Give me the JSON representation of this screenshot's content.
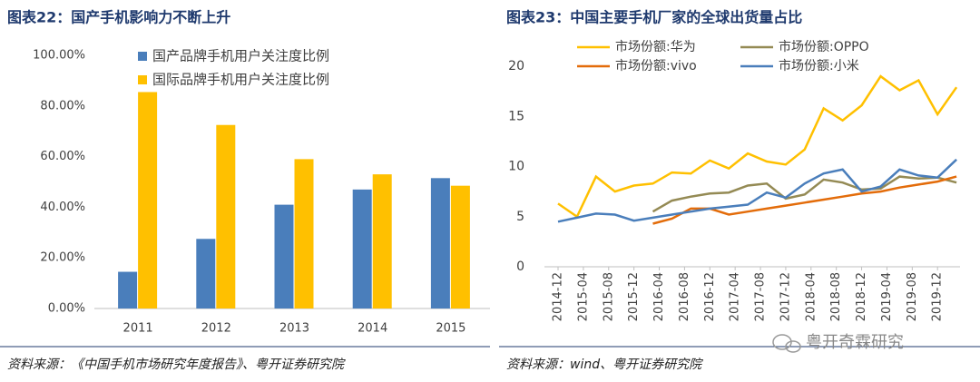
{
  "chart_data": [
    {
      "type": "bar",
      "title": "图表22：国产手机影响力不断上升",
      "categories": [
        "2011",
        "2012",
        "2013",
        "2014",
        "2015"
      ],
      "series": [
        {
          "name": "国产品牌手机用户关注度比例",
          "color": "#4a7ebb",
          "values": [
            14.5,
            27.5,
            41,
            47,
            51.5
          ]
        },
        {
          "name": "国际品牌手机用户关注度比例",
          "color": "#ffc000",
          "values": [
            85.5,
            72.5,
            59,
            53,
            48.5
          ]
        }
      ],
      "ylim": [
        0,
        100
      ],
      "yticks": [
        {
          "value": 0,
          "label": "0.00%"
        },
        {
          "value": 20,
          "label": "20.00%"
        },
        {
          "value": 40,
          "label": "40.00%"
        },
        {
          "value": 60,
          "label": "60.00%"
        },
        {
          "value": 80,
          "label": "80.00%"
        },
        {
          "value": 100,
          "label": "100.00%"
        }
      ],
      "grid": false,
      "source": "资料来源：《中国手机市场研究年度报告》、粤开证券研究院"
    },
    {
      "type": "line",
      "title": "图表23：中国主要手机厂家的全球出货量占比",
      "x": [
        "2014-12",
        "2015-03",
        "2015-06",
        "2015-09",
        "2015-12",
        "2016-03",
        "2016-06",
        "2016-09",
        "2016-12",
        "2017-03",
        "2017-06",
        "2017-09",
        "2017-12",
        "2018-03",
        "2018-06",
        "2018-09",
        "2018-12",
        "2019-03",
        "2019-06",
        "2019-09",
        "2019-12",
        "2020-03"
      ],
      "xticks": [
        "2014-12",
        "2015-04",
        "2015-08",
        "2015-12",
        "2016-04",
        "2016-08",
        "2016-12",
        "2017-04",
        "2017-08",
        "2017-12",
        "2018-04",
        "2018-08",
        "2018-12",
        "2019-04",
        "2019-08",
        "2019-12"
      ],
      "series": [
        {
          "name": "市场份额:华为",
          "color": "#ffc000",
          "values": [
            6.3,
            5.0,
            9.0,
            7.5,
            8.1,
            8.3,
            9.4,
            9.3,
            10.6,
            9.8,
            11.3,
            10.5,
            10.2,
            11.7,
            15.8,
            14.6,
            16.1,
            19.0,
            17.6,
            18.6,
            15.2,
            17.9
          ]
        },
        {
          "name": "市场份额:OPPO",
          "color": "#948a54",
          "values": [
            null,
            null,
            null,
            null,
            null,
            5.5,
            6.6,
            7.0,
            7.3,
            7.4,
            8.1,
            8.3,
            6.8,
            7.2,
            8.7,
            8.4,
            7.7,
            7.8,
            9.0,
            8.8,
            8.9,
            8.4
          ]
        },
        {
          "name": "市场份额:vivo",
          "color": "#e36c0a",
          "values": [
            null,
            null,
            null,
            null,
            null,
            4.3,
            4.8,
            5.8,
            5.8,
            5.2,
            5.5,
            5.8,
            6.1,
            6.4,
            6.7,
            7.0,
            7.3,
            7.5,
            7.9,
            8.2,
            8.5,
            9.0
          ]
        },
        {
          "name": "市场份额:小米",
          "color": "#4a7ebb",
          "values": [
            4.5,
            4.9,
            5.3,
            5.2,
            4.6,
            4.9,
            5.2,
            5.5,
            5.8,
            6.0,
            6.2,
            7.4,
            6.9,
            8.3,
            9.3,
            9.7,
            7.5,
            8.0,
            9.7,
            9.1,
            8.9,
            10.7
          ]
        }
      ],
      "ylim": [
        0,
        20
      ],
      "yticks": [
        0,
        5,
        10,
        15,
        20
      ],
      "grid": false,
      "source": "资料来源：wind、粤开证券研究院"
    }
  ],
  "watermark": "粤开奇霖研究"
}
